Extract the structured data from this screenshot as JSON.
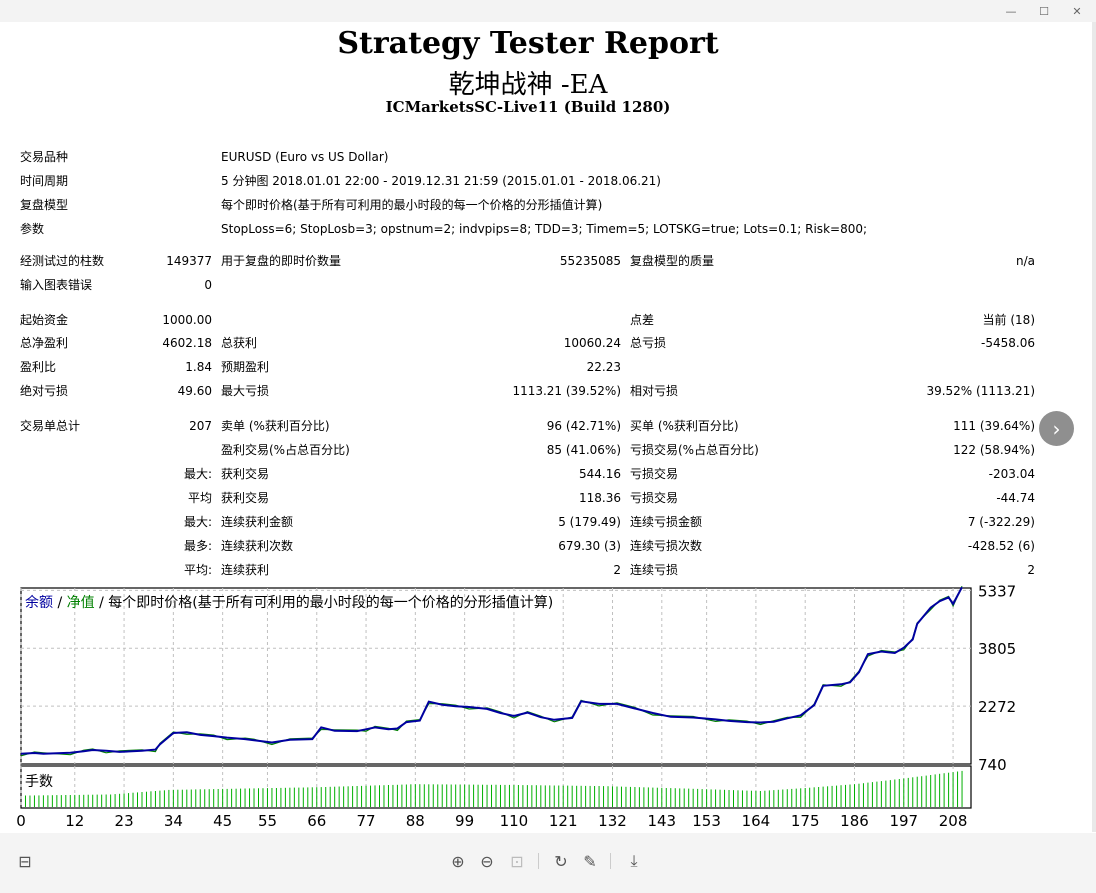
{
  "window": {
    "minimize": "—",
    "maximize": "☐",
    "close": "✕"
  },
  "header": {
    "title": "Strategy Tester Report",
    "ea_name": "乾坤战神 -EA",
    "server": "ICMarketsSC-Live11 (Build 1280)"
  },
  "info": {
    "symbol_label": "交易品种",
    "symbol_value": "EURUSD (Euro vs US Dollar)",
    "period_label": "时间周期",
    "period_value": "5 分钟图 2018.01.01 22:00 - 2019.12.31 21:59 (2015.01.01 - 2018.06.21)",
    "model_label": "复盘模型",
    "model_value": "每个即时价格(基于所有可利用的最小时段的每一个价格的分形插值计算)",
    "params_label": "参数",
    "params_value": "StopLoss=6; StopLosb=3; opstnum=2; indvpips=8; TDD=3; Timem=5; LOTSKG=true; Lots=0.1; Risk=800;"
  },
  "stats": {
    "bars_label": "经测试过的柱数",
    "bars_value": "149377",
    "ticks_label": "用于复盘的即时价数量",
    "ticks_value": "55235085",
    "quality_label": "复盘模型的质量",
    "quality_value": "n/a",
    "errors_label": "输入图表错误",
    "errors_value": "0",
    "deposit_label": "起始资金",
    "deposit_value": "1000.00",
    "spread_label": "点差",
    "spread_value": "当前 (18)",
    "net_label": "总净盈利",
    "net_value": "4602.18",
    "gross_profit_label": "总获利",
    "gross_profit_value": "10060.24",
    "gross_loss_label": "总亏损",
    "gross_loss_value": "-5458.06",
    "pf_label": "盈利比",
    "pf_value": "1.84",
    "expected_label": "预期盈利",
    "expected_value": "22.23",
    "abs_dd_label": "绝对亏损",
    "abs_dd_value": "49.60",
    "max_dd_label": "最大亏损",
    "max_dd_value": "1113.21 (39.52%)",
    "rel_dd_label": "相对亏损",
    "rel_dd_value": "39.52% (1113.21)",
    "total_trades_label": "交易单总计",
    "total_trades_value": "207",
    "short_label": "卖单 (%获利百分比)",
    "short_value": "96 (42.71%)",
    "long_label": "买单 (%获利百分比)",
    "long_value": "111 (39.64%)",
    "profit_trades_label": "盈利交易(%占总百分比)",
    "profit_trades_value": "85 (41.06%)",
    "loss_trades_label": "亏损交易(%占总百分比)",
    "loss_trades_value": "122 (58.94%)",
    "largest_prefix": "最大:",
    "largest_profit_label": "获利交易",
    "largest_profit_value": "544.16",
    "largest_loss_label": "亏损交易",
    "largest_loss_value": "-203.04",
    "average_prefix": "平均",
    "avg_profit_label": "获利交易",
    "avg_profit_value": "118.36",
    "avg_loss_label": "亏损交易",
    "avg_loss_value": "-44.74",
    "max_consec_prefix": "最大:",
    "max_consec_wins_label": "连续获利金额",
    "max_consec_wins_value": "5 (179.49)",
    "max_consec_losses_label": "连续亏损金额",
    "max_consec_losses_value": "7 (-322.29)",
    "maximal_prefix": "最多:",
    "maximal_wins_label": "连续获利次数",
    "maximal_wins_value": "679.30 (3)",
    "maximal_losses_label": "连续亏损次数",
    "maximal_losses_value": "-428.52 (6)",
    "avg_consec_prefix": "平均:",
    "avg_consec_wins_label": "连续获利",
    "avg_consec_wins_value": "2",
    "avg_consec_losses_label": "连续亏损",
    "avg_consec_losses_value": "2"
  },
  "chart_data": {
    "type": "line",
    "legend_balance": "余额",
    "legend_sep1": " / ",
    "legend_equity": "净值",
    "legend_sep2": " / ",
    "legend_model": "每个即时价格(基于所有可利用的最小时段的每一个价格的分形插值计算)",
    "lots_label": "手数",
    "colors": {
      "balance": "#0000a0",
      "equity": "#008000",
      "lots": "#00b000",
      "grid": "#c0c0c0"
    },
    "grid": true,
    "ylim": [
      740,
      5400
    ],
    "yticks": [
      "5337",
      "3805",
      "2272",
      "740"
    ],
    "ytick_values": [
      5337,
      3805,
      2272,
      740
    ],
    "xticks": [
      "0",
      "12",
      "23",
      "34",
      "45",
      "55",
      "66",
      "77",
      "88",
      "99",
      "110",
      "121",
      "132",
      "143",
      "153",
      "164",
      "175",
      "186",
      "197",
      "208"
    ],
    "xtick_values": [
      0,
      12,
      23,
      34,
      45,
      55,
      66,
      77,
      88,
      99,
      110,
      121,
      132,
      143,
      153,
      164,
      175,
      186,
      197,
      208
    ],
    "xlim": [
      0,
      212
    ],
    "balance": [
      [
        0,
        1010
      ],
      [
        3,
        1030
      ],
      [
        5,
        1010
      ],
      [
        11,
        1040
      ],
      [
        14,
        1080
      ],
      [
        16,
        1110
      ],
      [
        19,
        1090
      ],
      [
        22,
        1060
      ],
      [
        27,
        1090
      ],
      [
        30,
        1120
      ],
      [
        31,
        1260
      ],
      [
        34,
        1560
      ],
      [
        37,
        1580
      ],
      [
        40,
        1510
      ],
      [
        43,
        1480
      ],
      [
        46,
        1440
      ],
      [
        50,
        1400
      ],
      [
        52,
        1370
      ],
      [
        56,
        1310
      ],
      [
        60,
        1380
      ],
      [
        65,
        1400
      ],
      [
        67,
        1710
      ],
      [
        70,
        1620
      ],
      [
        75,
        1610
      ],
      [
        77,
        1660
      ],
      [
        79,
        1710
      ],
      [
        82,
        1660
      ],
      [
        84,
        1680
      ],
      [
        86,
        1850
      ],
      [
        89,
        1890
      ],
      [
        91,
        2390
      ],
      [
        94,
        2310
      ],
      [
        97,
        2270
      ],
      [
        100,
        2250
      ],
      [
        104,
        2200
      ],
      [
        107,
        2090
      ],
      [
        110,
        2010
      ],
      [
        113,
        2100
      ],
      [
        116,
        1980
      ],
      [
        119,
        1910
      ],
      [
        123,
        1960
      ],
      [
        125,
        2400
      ],
      [
        129,
        2330
      ],
      [
        133,
        2330
      ],
      [
        137,
        2210
      ],
      [
        141,
        2090
      ],
      [
        145,
        1990
      ],
      [
        150,
        1970
      ],
      [
        155,
        1920
      ],
      [
        158,
        1880
      ],
      [
        162,
        1850
      ],
      [
        165,
        1840
      ],
      [
        168,
        1860
      ],
      [
        171,
        1950
      ],
      [
        174,
        2030
      ],
      [
        177,
        2300
      ],
      [
        179,
        2810
      ],
      [
        183,
        2850
      ],
      [
        185,
        2900
      ],
      [
        187,
        3170
      ],
      [
        189,
        3650
      ],
      [
        192,
        3720
      ],
      [
        195,
        3680
      ],
      [
        197,
        3820
      ],
      [
        199,
        4040
      ],
      [
        200,
        4450
      ],
      [
        203,
        4880
      ],
      [
        205,
        5050
      ],
      [
        207,
        5150
      ],
      [
        208,
        4980
      ],
      [
        210,
        5420
      ]
    ],
    "lots": [
      [
        0,
        0.3
      ],
      [
        20,
        0.33
      ],
      [
        33,
        0.45
      ],
      [
        66,
        0.52
      ],
      [
        88,
        0.6
      ],
      [
        110,
        0.58
      ],
      [
        130,
        0.55
      ],
      [
        150,
        0.48
      ],
      [
        165,
        0.42
      ],
      [
        175,
        0.5
      ],
      [
        186,
        0.6
      ],
      [
        197,
        0.75
      ],
      [
        210,
        0.95
      ]
    ]
  },
  "toolbar": {
    "layout_icon": "⊟",
    "zoom_in_icon": "⊕",
    "zoom_out_icon": "⊖",
    "fit_icon": "⊡",
    "redo_icon": "↻",
    "edit_icon": "✎",
    "download_icon": "⤓",
    "next_icon": "›"
  }
}
